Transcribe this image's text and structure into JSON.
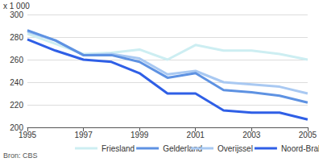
{
  "chart_data": {
    "type": "line",
    "ylabel": "x 1 000",
    "source": "Bron: CBS",
    "x": [
      1995,
      1996,
      1997,
      1998,
      1999,
      2000,
      2001,
      2002,
      2003,
      2004,
      2005
    ],
    "series": [
      {
        "name": "Friesland",
        "color": "#cdeef2",
        "values": [
          283,
          274,
          265,
          266,
          269,
          260,
          273,
          268,
          268,
          265,
          260
        ]
      },
      {
        "name": "Overijssel",
        "color": "#a9c9f2",
        "values": [
          285,
          277,
          264,
          265,
          261,
          247,
          250,
          240,
          238,
          236,
          230
        ]
      },
      {
        "name": "Gelderland",
        "color": "#5e92e2",
        "values": [
          286,
          277,
          264,
          264,
          258,
          244,
          248,
          233,
          231,
          228,
          222
        ]
      },
      {
        "name": "Noord-Brabant",
        "color": "#2f5fe6",
        "values": [
          278,
          268,
          260,
          258,
          248,
          230,
          230,
          215,
          213,
          213,
          207
        ]
      }
    ],
    "xlim": [
      1995,
      2005
    ],
    "xticks": [
      1995,
      1997,
      1999,
      2001,
      2003,
      2005
    ],
    "ylim": [
      200,
      300
    ],
    "yticks": [
      200,
      220,
      240,
      260,
      280,
      300
    ],
    "grid": true,
    "legend": "bottom"
  }
}
